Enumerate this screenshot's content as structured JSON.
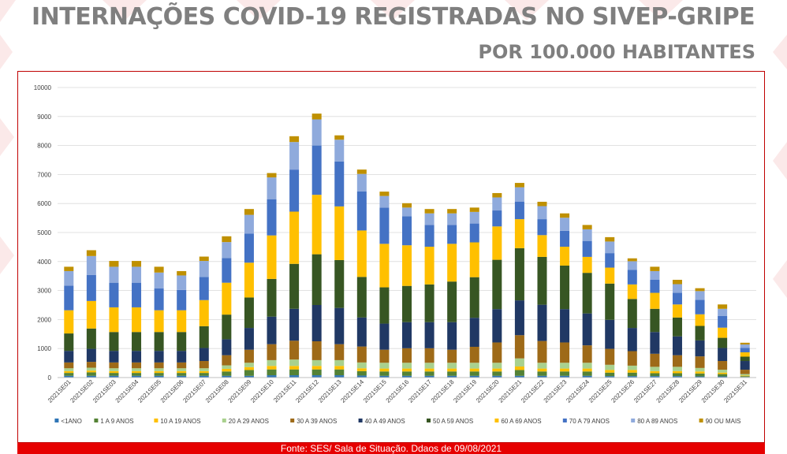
{
  "header": {
    "title": "INTERNAÇÕES COVID-19 REGISTRADAS NO SIVEP-GRIPE",
    "subtitle": "POR 100.000 HABITANTES"
  },
  "footer": {
    "source": "Fonte: SES/ Sala de Situação. Ddaos de 09/08/2021"
  },
  "colors": {
    "title": "#7f7f7f",
    "frame": "#c00000",
    "footer_bg": "#e60000",
    "grid": "#d9d9d9"
  },
  "chart_data": {
    "type": "bar",
    "stacked": true,
    "title": "",
    "xlabel": "",
    "ylabel": "",
    "ylim": [
      0,
      10000
    ],
    "yticks": [
      0,
      1000,
      2000,
      3000,
      4000,
      5000,
      6000,
      7000,
      8000,
      9000,
      10000
    ],
    "grid": true,
    "legend_position": "bottom",
    "categories": [
      "2021SE01",
      "2021SE02",
      "2021SE03",
      "2021SE04",
      "2021SE05",
      "2021SE06",
      "2021SE07",
      "2021SE08",
      "2021SE09",
      "2021SE10",
      "2021SE11",
      "2021SE12",
      "2021SE13",
      "2021SE14",
      "2021SE15",
      "2021SE16",
      "2021SE17",
      "2021SE18",
      "2021SE19",
      "2021SE20",
      "2021SE21",
      "2021SE22",
      "2021SE23",
      "2021SE24",
      "2021SE25",
      "2021SE26",
      "2021SE27",
      "2021SE28",
      "2021SE29",
      "2021SE30",
      "2021SE31"
    ],
    "series": [
      {
        "name": "<1ANO",
        "color": "#2e75b6",
        "values": [
          60,
          60,
          60,
          60,
          60,
          60,
          60,
          60,
          60,
          80,
          80,
          80,
          80,
          70,
          60,
          60,
          60,
          60,
          60,
          60,
          60,
          60,
          60,
          60,
          50,
          50,
          50,
          50,
          40,
          40,
          20
        ]
      },
      {
        "name": "1 A 9 ANOS",
        "color": "#548235",
        "values": [
          100,
          120,
          100,
          100,
          100,
          100,
          100,
          150,
          200,
          200,
          200,
          200,
          200,
          150,
          150,
          150,
          150,
          150,
          150,
          150,
          200,
          150,
          150,
          150,
          120,
          120,
          100,
          100,
          100,
          80,
          30
        ]
      },
      {
        "name": "10 A 19 ANOS",
        "color": "#ffc000",
        "values": [
          60,
          60,
          60,
          60,
          60,
          60,
          60,
          90,
          100,
          120,
          120,
          120,
          120,
          100,
          100,
          100,
          100,
          100,
          100,
          100,
          120,
          100,
          100,
          100,
          90,
          90,
          70,
          70,
          70,
          50,
          20
        ]
      },
      {
        "name": "20 A 29 ANOS",
        "color": "#a9d18e",
        "values": [
          100,
          100,
          100,
          100,
          100,
          100,
          100,
          120,
          150,
          200,
          220,
          200,
          200,
          200,
          200,
          200,
          200,
          200,
          200,
          200,
          280,
          200,
          200,
          200,
          180,
          150,
          150,
          150,
          120,
          100,
          50
        ]
      },
      {
        "name": "30 A 39 ANOS",
        "color": "#9e6a18",
        "values": [
          200,
          200,
          200,
          200,
          200,
          200,
          250,
          350,
          450,
          550,
          650,
          650,
          550,
          550,
          450,
          500,
          500,
          450,
          550,
          700,
          800,
          750,
          700,
          600,
          550,
          500,
          450,
          400,
          400,
          300,
          150
        ]
      },
      {
        "name": "40 A 49 ANOS",
        "color": "#203864",
        "values": [
          400,
          450,
          400,
          400,
          400,
          400,
          450,
          550,
          750,
          950,
          1100,
          1250,
          1250,
          1000,
          900,
          900,
          900,
          950,
          1000,
          1150,
          1200,
          1250,
          1150,
          1100,
          1000,
          800,
          750,
          650,
          550,
          450,
          300
        ]
      },
      {
        "name": "50 A 59 ANOS",
        "color": "#375623",
        "values": [
          600,
          700,
          650,
          650,
          650,
          650,
          750,
          850,
          1050,
          1300,
          1550,
          1750,
          1650,
          1400,
          1250,
          1250,
          1300,
          1400,
          1400,
          1700,
          1800,
          1650,
          1500,
          1400,
          1250,
          1000,
          800,
          650,
          500,
          350,
          150
        ]
      },
      {
        "name": "60 A 69 ANOS",
        "color": "#ffc000",
        "values": [
          800,
          950,
          850,
          850,
          750,
          750,
          900,
          1100,
          1200,
          1500,
          1800,
          2050,
          1850,
          1600,
          1500,
          1400,
          1300,
          1300,
          1200,
          1150,
          1000,
          750,
          650,
          550,
          550,
          500,
          550,
          450,
          400,
          350,
          150
        ]
      },
      {
        "name": "70 A 79 ANOS",
        "color": "#4472c4",
        "values": [
          850,
          900,
          850,
          850,
          750,
          700,
          800,
          850,
          1000,
          1250,
          1450,
          1700,
          1550,
          1350,
          1250,
          1000,
          750,
          650,
          650,
          550,
          600,
          550,
          550,
          550,
          500,
          500,
          450,
          400,
          500,
          400,
          150
        ]
      },
      {
        "name": "80 A 89 ANOS",
        "color": "#8faadc",
        "values": [
          500,
          650,
          550,
          550,
          550,
          500,
          550,
          550,
          650,
          750,
          950,
          900,
          750,
          600,
          400,
          300,
          400,
          400,
          400,
          450,
          500,
          450,
          450,
          400,
          400,
          300,
          300,
          300,
          300,
          250,
          120
        ]
      },
      {
        "name": "90 OU MAIS",
        "color": "#bf9000",
        "values": [
          150,
          200,
          200,
          200,
          200,
          150,
          150,
          200,
          200,
          150,
          200,
          200,
          150,
          150,
          150,
          150,
          150,
          150,
          150,
          150,
          150,
          150,
          150,
          150,
          150,
          100,
          150,
          150,
          100,
          150,
          60
        ]
      }
    ]
  }
}
